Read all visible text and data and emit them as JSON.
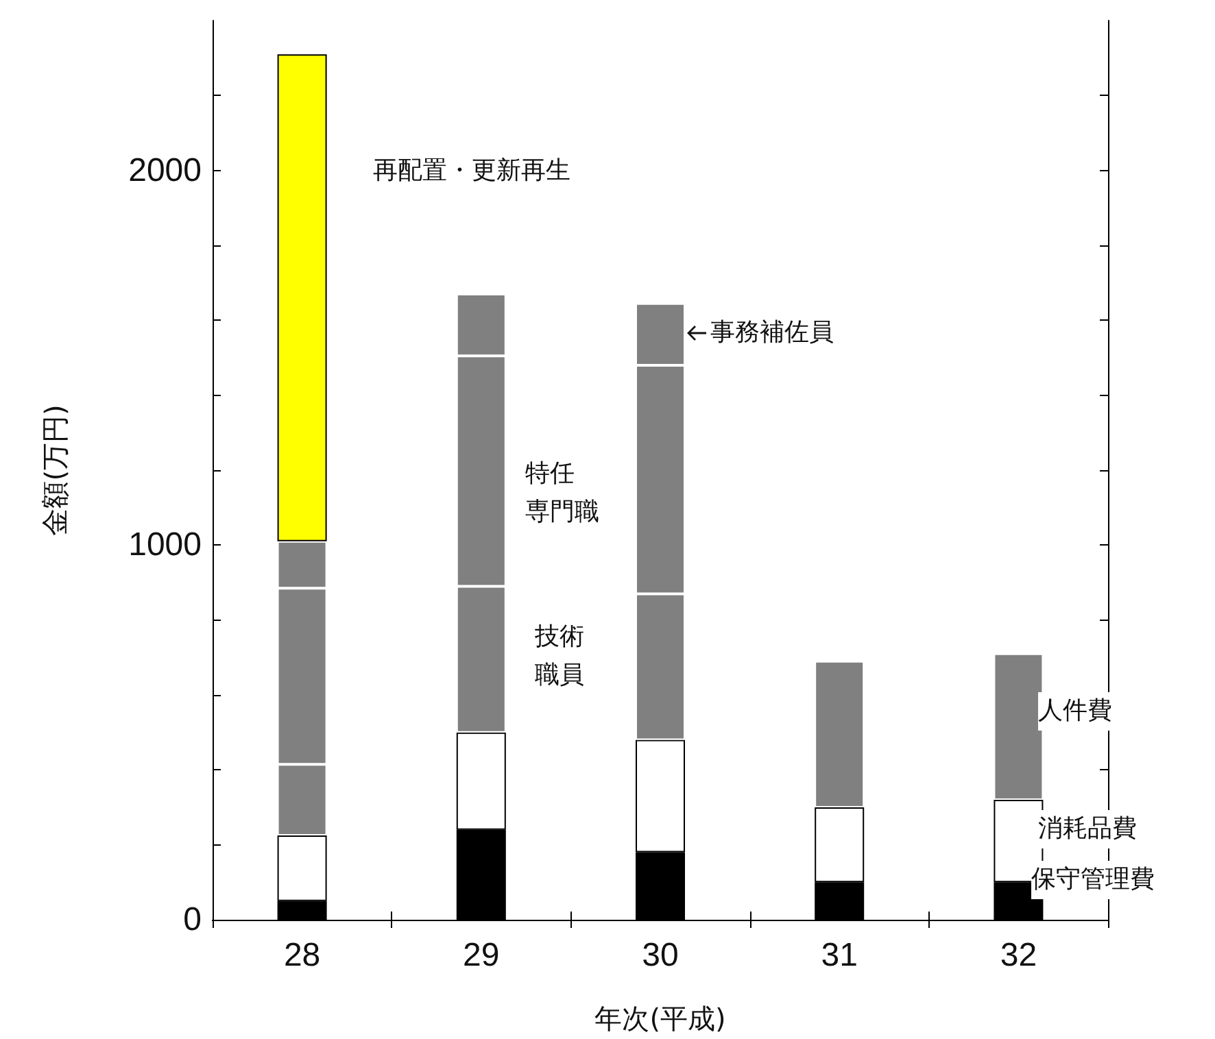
{
  "chart_data": {
    "type": "bar",
    "stacked": true,
    "categories": [
      "28",
      "29",
      "30",
      "31",
      "32"
    ],
    "xlabel": "年次(平成)",
    "ylabel": "金額(万円)",
    "ylim": [
      0,
      2400
    ],
    "yticks": [
      0,
      {
        "value": 200,
        "label": null
      },
      {
        "value": 400,
        "label": null
      },
      {
        "value": 600,
        "label": null
      },
      {
        "value": 800,
        "label": null
      },
      1000,
      {
        "value": 1200,
        "label": null
      },
      {
        "value": 1400,
        "label": null
      },
      {
        "value": 1600,
        "label": null
      },
      {
        "value": 1800,
        "label": null
      },
      2000,
      {
        "value": 2200,
        "label": null
      }
    ],
    "grid": false,
    "legend": false,
    "annotations": [
      "人件費"
    ],
    "series": [
      {
        "name": "保守管理費",
        "color": "#000000",
        "values": [
          50,
          240,
          180,
          100,
          100
        ]
      },
      {
        "name": "消耗品費",
        "color": "#ffffff",
        "values": [
          175,
          260,
          300,
          200,
          220
        ]
      },
      {
        "name": "技術職員",
        "color": "#808080",
        "values": [
          190,
          390,
          390,
          390,
          390
        ]
      },
      {
        "name": "特任専門職",
        "color": "#808080",
        "values": [
          470,
          615,
          610,
          null,
          null
        ]
      },
      {
        "name": "事務補佐員",
        "color": "#808080",
        "values": [
          125,
          165,
          165,
          null,
          null
        ]
      },
      {
        "name": "再配置・更新再生",
        "color": "#ffff00",
        "values": [
          1300,
          null,
          null,
          null,
          null
        ]
      }
    ]
  }
}
